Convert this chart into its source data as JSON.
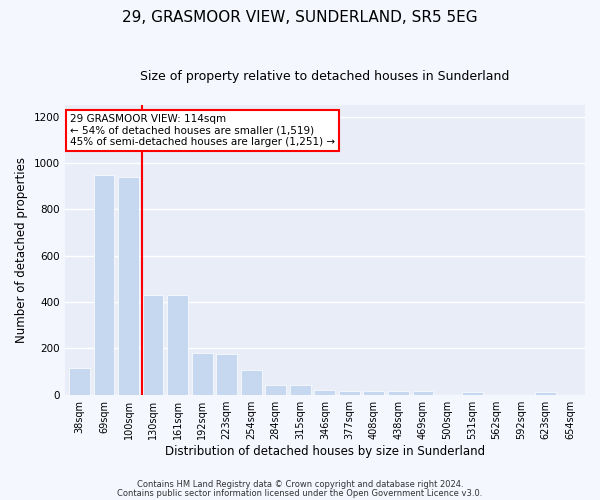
{
  "title": "29, GRASMOOR VIEW, SUNDERLAND, SR5 5EG",
  "subtitle": "Size of property relative to detached houses in Sunderland",
  "xlabel": "Distribution of detached houses by size in Sunderland",
  "ylabel": "Number of detached properties",
  "categories": [
    "38sqm",
    "69sqm",
    "100sqm",
    "130sqm",
    "161sqm",
    "192sqm",
    "223sqm",
    "254sqm",
    "284sqm",
    "315sqm",
    "346sqm",
    "377sqm",
    "408sqm",
    "438sqm",
    "469sqm",
    "500sqm",
    "531sqm",
    "562sqm",
    "592sqm",
    "623sqm",
    "654sqm"
  ],
  "values": [
    115,
    950,
    940,
    430,
    430,
    180,
    175,
    105,
    40,
    40,
    20,
    18,
    15,
    15,
    15,
    0,
    10,
    0,
    0,
    10,
    0
  ],
  "bar_color": "#c5d8f0",
  "ylim": [
    0,
    1250
  ],
  "yticks": [
    0,
    200,
    400,
    600,
    800,
    1000,
    1200
  ],
  "red_line_x": 2.55,
  "annotation_text": "29 GRASMOOR VIEW: 114sqm\n← 54% of detached houses are smaller (1,519)\n45% of semi-detached houses are larger (1,251) →",
  "footer_line1": "Contains HM Land Registry data © Crown copyright and database right 2024.",
  "footer_line2": "Contains public sector information licensed under the Open Government Licence v3.0.",
  "fig_bg_color": "#f5f7ff",
  "ax_bg_color": "#e8edf8",
  "grid_color": "#ffffff",
  "title_fontsize": 11,
  "subtitle_fontsize": 9,
  "tick_fontsize": 7,
  "ylabel_fontsize": 8.5,
  "xlabel_fontsize": 8.5,
  "footer_fontsize": 6,
  "annotation_fontsize": 7.5
}
